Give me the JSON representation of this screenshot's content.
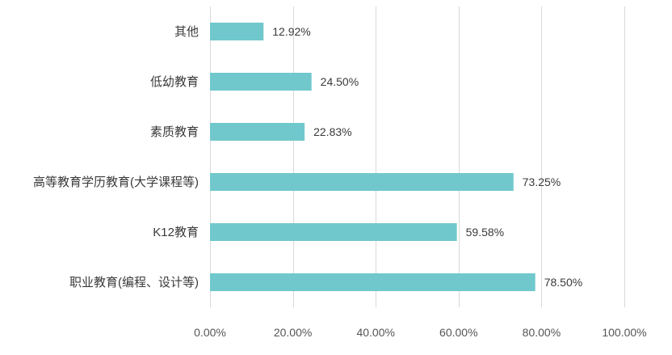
{
  "chart_data": {
    "type": "bar",
    "orientation": "horizontal",
    "categories": [
      "其他",
      "低幼教育",
      "素质教育",
      "高等教育学历教育(大学课程等)",
      "K12教育",
      "职业教育(编程、设计等)"
    ],
    "values": [
      12.92,
      24.5,
      22.83,
      73.25,
      59.58,
      78.5
    ],
    "value_labels": [
      "12.92%",
      "24.50%",
      "22.83%",
      "73.25%",
      "59.58%",
      "78.50%"
    ],
    "x_ticks": [
      0,
      20,
      40,
      60,
      80,
      100
    ],
    "x_tick_labels": [
      "0.00%",
      "20.00%",
      "40.00%",
      "60.00%",
      "80.00%",
      "100.00%"
    ],
    "xlim": [
      0,
      100
    ],
    "grid": "vertical",
    "legend": "none",
    "bar_color": "#70c8cc",
    "title": "",
    "xlabel": "",
    "ylabel": ""
  }
}
